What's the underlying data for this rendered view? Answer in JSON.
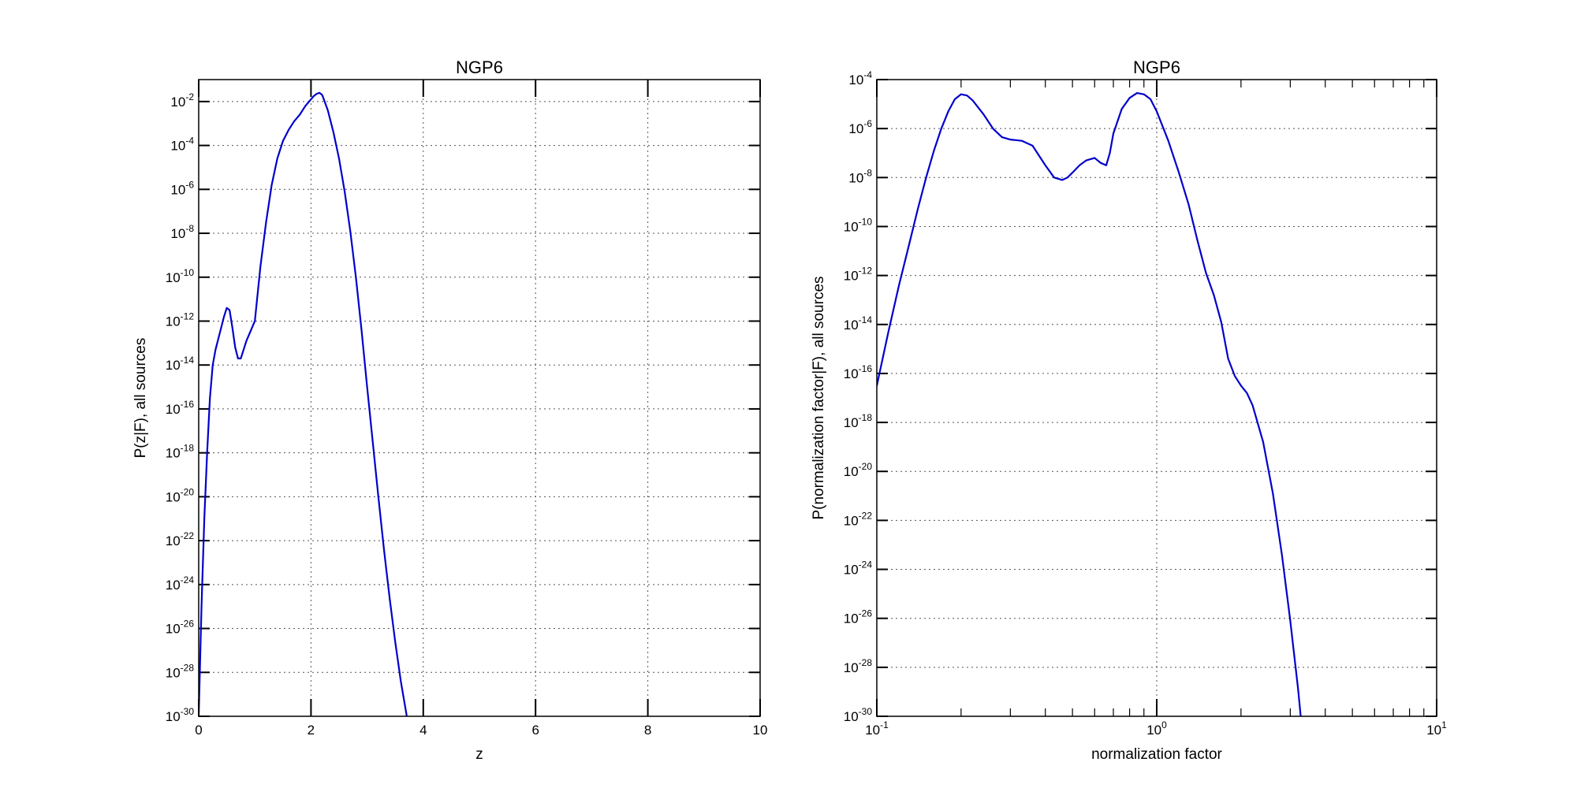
{
  "chart_data": [
    {
      "type": "line",
      "title": "NGP6",
      "xlabel": "z",
      "ylabel": "P(z|F), all sources",
      "xscale": "linear",
      "yscale": "log",
      "xlim": [
        0,
        10
      ],
      "ylim": [
        1e-30,
        0.1
      ],
      "grid": true,
      "line_color": "#0000cc",
      "xticks": [
        {
          "value": 0,
          "label": "0"
        },
        {
          "value": 2,
          "label": "2"
        },
        {
          "value": 4,
          "label": "4"
        },
        {
          "value": 6,
          "label": "6"
        },
        {
          "value": 8,
          "label": "8"
        },
        {
          "value": 10,
          "label": "10"
        }
      ],
      "yticks": [
        {
          "exp": -2,
          "base": "10",
          "sup": "-2"
        },
        {
          "exp": -4,
          "base": "10",
          "sup": "-4"
        },
        {
          "exp": -6,
          "base": "10",
          "sup": "-6"
        },
        {
          "exp": -8,
          "base": "10",
          "sup": "-8"
        },
        {
          "exp": -10,
          "base": "10",
          "sup": "-10"
        },
        {
          "exp": -12,
          "base": "10",
          "sup": "-12"
        },
        {
          "exp": -14,
          "base": "10",
          "sup": "-14"
        },
        {
          "exp": -16,
          "base": "10",
          "sup": "-16"
        },
        {
          "exp": -18,
          "base": "10",
          "sup": "-18"
        },
        {
          "exp": -20,
          "base": "10",
          "sup": "-20"
        },
        {
          "exp": -22,
          "base": "10",
          "sup": "-22"
        },
        {
          "exp": -24,
          "base": "10",
          "sup": "-24"
        },
        {
          "exp": -26,
          "base": "10",
          "sup": "-26"
        },
        {
          "exp": -28,
          "base": "10",
          "sup": "-28"
        },
        {
          "exp": -30,
          "base": "10",
          "sup": "-30"
        }
      ],
      "series": [
        {
          "x": [
            0.0,
            0.05,
            0.1,
            0.15,
            0.2,
            0.25,
            0.3,
            0.35,
            0.4,
            0.45,
            0.5,
            0.55,
            0.6,
            0.65,
            0.7,
            0.75,
            0.8,
            0.85,
            0.9,
            0.95,
            1.0,
            1.1,
            1.2,
            1.3,
            1.4,
            1.5,
            1.6,
            1.7,
            1.8,
            1.9,
            2.0,
            2.05,
            2.1,
            2.15,
            2.2,
            2.3,
            2.4,
            2.5,
            2.6,
            2.7,
            2.8,
            2.9,
            3.0,
            3.1,
            3.2,
            3.3,
            3.4,
            3.5,
            3.6,
            3.7,
            3.75
          ],
          "y_log10": [
            -30,
            -25,
            -21,
            -18,
            -15.5,
            -14,
            -13.3,
            -12.8,
            -12.3,
            -11.8,
            -11.4,
            -11.5,
            -12.3,
            -13.2,
            -13.7,
            -13.7,
            -13.3,
            -12.9,
            -12.6,
            -12.3,
            -12,
            -9.5,
            -7.5,
            -5.8,
            -4.6,
            -3.8,
            -3.3,
            -2.9,
            -2.6,
            -2.2,
            -1.9,
            -1.75,
            -1.65,
            -1.6,
            -1.7,
            -2.4,
            -3.4,
            -4.6,
            -6.1,
            -7.9,
            -10.0,
            -12.4,
            -15.0,
            -17.5,
            -20.0,
            -22.4,
            -24.6,
            -26.6,
            -28.4,
            -29.9,
            -30.8
          ]
        }
      ]
    },
    {
      "type": "line",
      "title": "NGP6",
      "xlabel": "normalization factor",
      "ylabel": "P(normalization factor|F), all sources",
      "xscale": "log",
      "yscale": "log",
      "xlim": [
        0.1,
        10
      ],
      "ylim": [
        1e-30,
        0.0001
      ],
      "grid": true,
      "line_color": "#0000cc",
      "xticks": [
        {
          "exp": -1,
          "base": "10",
          "sup": "-1"
        },
        {
          "exp": 0,
          "base": "10",
          "sup": "0"
        },
        {
          "exp": 1,
          "base": "10",
          "sup": "1"
        }
      ],
      "yticks": [
        {
          "exp": -4,
          "base": "10",
          "sup": "-4"
        },
        {
          "exp": -6,
          "base": "10",
          "sup": "-6"
        },
        {
          "exp": -8,
          "base": "10",
          "sup": "-8"
        },
        {
          "exp": -10,
          "base": "10",
          "sup": "-10"
        },
        {
          "exp": -12,
          "base": "10",
          "sup": "-12"
        },
        {
          "exp": -14,
          "base": "10",
          "sup": "-14"
        },
        {
          "exp": -16,
          "base": "10",
          "sup": "-16"
        },
        {
          "exp": -18,
          "base": "10",
          "sup": "-18"
        },
        {
          "exp": -20,
          "base": "10",
          "sup": "-20"
        },
        {
          "exp": -22,
          "base": "10",
          "sup": "-22"
        },
        {
          "exp": -24,
          "base": "10",
          "sup": "-24"
        },
        {
          "exp": -26,
          "base": "10",
          "sup": "-26"
        },
        {
          "exp": -28,
          "base": "10",
          "sup": "-28"
        },
        {
          "exp": -30,
          "base": "10",
          "sup": "-30"
        }
      ],
      "series": [
        {
          "x": [
            0.1,
            0.11,
            0.12,
            0.13,
            0.14,
            0.15,
            0.16,
            0.17,
            0.18,
            0.19,
            0.2,
            0.21,
            0.22,
            0.24,
            0.26,
            0.28,
            0.3,
            0.33,
            0.36,
            0.4,
            0.43,
            0.46,
            0.48,
            0.5,
            0.53,
            0.56,
            0.6,
            0.63,
            0.66,
            0.68,
            0.7,
            0.75,
            0.8,
            0.85,
            0.9,
            0.95,
            1.0,
            1.1,
            1.2,
            1.3,
            1.4,
            1.5,
            1.6,
            1.7,
            1.8,
            1.9,
            2.0,
            2.1,
            2.2,
            2.4,
            2.6,
            2.8,
            3.0,
            3.2,
            3.3
          ],
          "y_log10": [
            -16.5,
            -14.3,
            -12.4,
            -10.8,
            -9.3,
            -8.0,
            -6.9,
            -6.0,
            -5.3,
            -4.8,
            -4.6,
            -4.65,
            -4.85,
            -5.4,
            -6.0,
            -6.35,
            -6.45,
            -6.5,
            -6.7,
            -7.5,
            -8.0,
            -8.1,
            -8.0,
            -7.8,
            -7.5,
            -7.3,
            -7.2,
            -7.4,
            -7.5,
            -7.0,
            -6.2,
            -5.2,
            -4.75,
            -4.55,
            -4.6,
            -4.8,
            -5.3,
            -6.5,
            -7.8,
            -9.1,
            -10.6,
            -11.9,
            -12.8,
            -13.9,
            -15.4,
            -16.1,
            -16.5,
            -16.8,
            -17.3,
            -18.8,
            -20.9,
            -23.4,
            -26.1,
            -28.9,
            -30.5
          ]
        }
      ]
    }
  ]
}
